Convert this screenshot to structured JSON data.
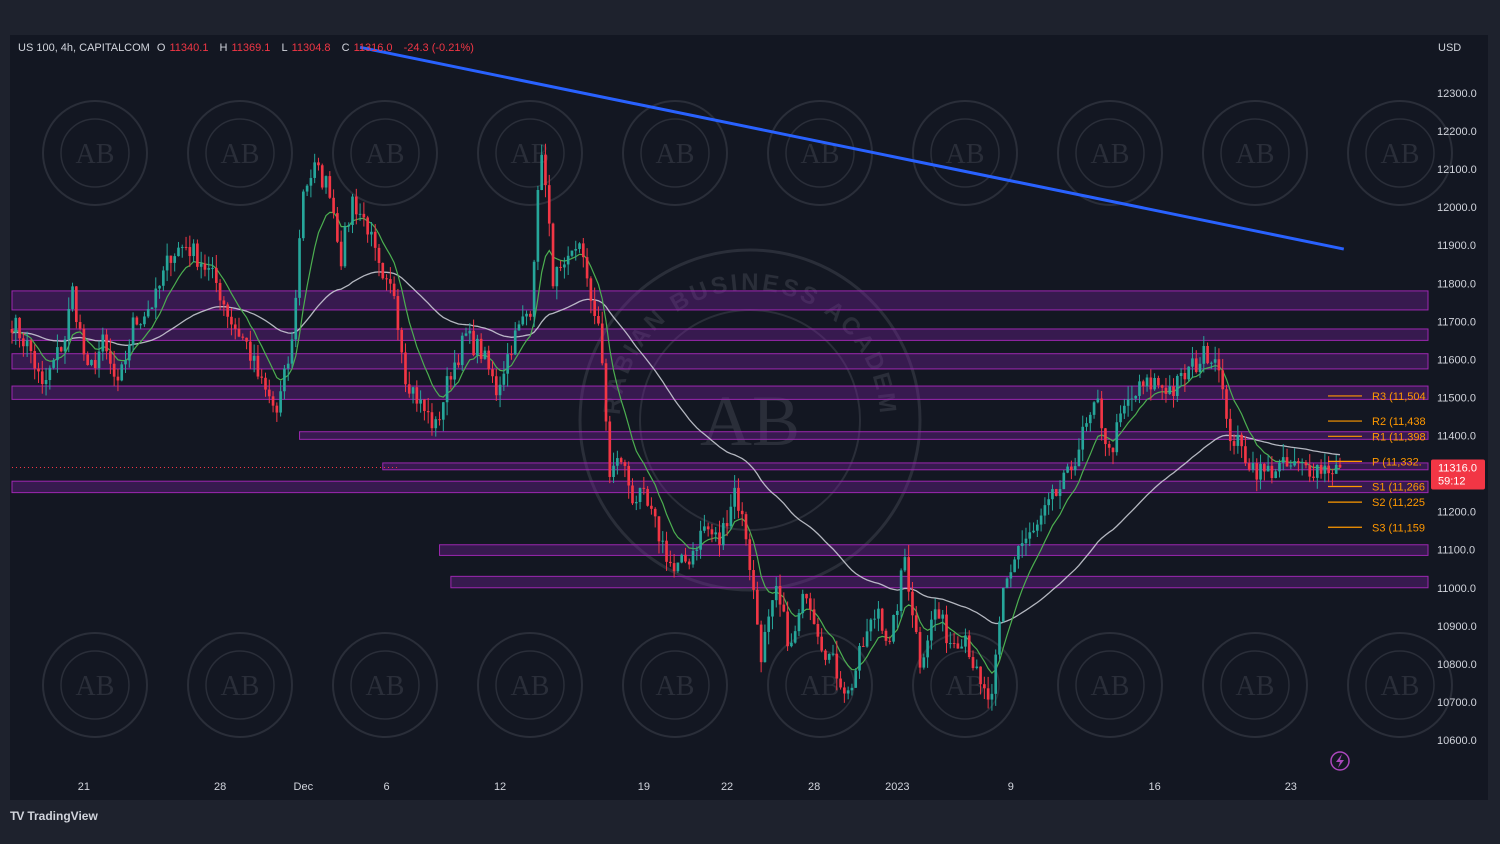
{
  "header": {
    "symbol": "US 100, 4h, CAPITALCOM",
    "open_label": "O",
    "open": "11340.1",
    "high_label": "H",
    "high": "11369.1",
    "low_label": "L",
    "low": "11304.8",
    "close_label": "C",
    "close": "11316.0",
    "change": "-24.3 (-0.21%)"
  },
  "currency": "USD",
  "footer": {
    "logo": "TV",
    "brand": "TradingView"
  },
  "price_tag": {
    "price": "11316.0",
    "countdown": "59:12"
  },
  "colors": {
    "background": "#131722",
    "frame": "#1e222d",
    "up": "#26a69a",
    "down": "#f23645",
    "trendline": "#2962ff",
    "zone_fill": "#7b1fa2",
    "zone_border": "#9c27b0",
    "ema_fast": "#4caf50",
    "ema_slow": "#d1d4dc",
    "pivot": "#ff9800"
  },
  "watermark": {
    "text": "ARABIAN BUSINESS ACADEMY",
    "monogram": "AB"
  },
  "icons": {
    "lightning": "lightning-icon"
  },
  "chart_data": {
    "type": "candlestick",
    "title": "US 100, 4h, CAPITALCOM",
    "ylabel": "USD",
    "ylim": [
      10560,
      12420
    ],
    "y_ticks": [
      10600,
      10700,
      10800,
      10900,
      11000,
      11100,
      11200,
      11300,
      11400,
      11500,
      11600,
      11700,
      11800,
      11900,
      12000,
      12100,
      12200,
      12300
    ],
    "y_tick_labels": [
      "10600.0",
      "10700.0",
      "10800.0",
      "10900.0",
      "11000.0",
      "11100.0",
      "11200.0",
      "11300.0",
      "11400.0",
      "11500.0",
      "11600.0",
      "11700.0",
      "11800.0",
      "11900.0",
      "12000.0",
      "12100.0",
      "12200.0",
      "12300.0"
    ],
    "x_ticks": [
      {
        "label": "21",
        "bar": 19
      },
      {
        "label": "28",
        "bar": 55
      },
      {
        "label": "Dec",
        "bar": 77
      },
      {
        "label": "6",
        "bar": 99
      },
      {
        "label": "12",
        "bar": 129
      },
      {
        "label": "19",
        "bar": 167
      },
      {
        "label": "22",
        "bar": 189
      },
      {
        "label": "28",
        "bar": 212
      },
      {
        "label": "2023",
        "bar": 234
      },
      {
        "label": "9",
        "bar": 264
      },
      {
        "label": "16",
        "bar": 302
      },
      {
        "label": "23",
        "bar": 338
      }
    ],
    "bar_count": 352,
    "anchors": [
      [
        0,
        11700
      ],
      [
        5,
        11620
      ],
      [
        8,
        11520
      ],
      [
        14,
        11660
      ],
      [
        16,
        11780
      ],
      [
        20,
        11560
      ],
      [
        24,
        11640
      ],
      [
        28,
        11520
      ],
      [
        32,
        11690
      ],
      [
        38,
        11760
      ],
      [
        42,
        11880
      ],
      [
        46,
        11900
      ],
      [
        50,
        11860
      ],
      [
        54,
        11800
      ],
      [
        58,
        11700
      ],
      [
        62,
        11640
      ],
      [
        66,
        11530
      ],
      [
        70,
        11460
      ],
      [
        74,
        11640
      ],
      [
        77,
        12050
      ],
      [
        80,
        12100
      ],
      [
        84,
        12050
      ],
      [
        87,
        11870
      ],
      [
        90,
        12020
      ],
      [
        94,
        11950
      ],
      [
        98,
        11790
      ],
      [
        101,
        11780
      ],
      [
        104,
        11560
      ],
      [
        108,
        11480
      ],
      [
        112,
        11420
      ],
      [
        116,
        11570
      ],
      [
        120,
        11660
      ],
      [
        124,
        11620
      ],
      [
        128,
        11520
      ],
      [
        132,
        11640
      ],
      [
        137,
        11740
      ],
      [
        140,
        12160
      ],
      [
        143,
        11820
      ],
      [
        146,
        11820
      ],
      [
        150,
        11920
      ],
      [
        152,
        11790
      ],
      [
        155,
        11700
      ],
      [
        158,
        11300
      ],
      [
        161,
        11340
      ],
      [
        164,
        11240
      ],
      [
        167,
        11230
      ],
      [
        171,
        11140
      ],
      [
        175,
        11040
      ],
      [
        179,
        11080
      ],
      [
        183,
        11160
      ],
      [
        187,
        11120
      ],
      [
        191,
        11260
      ],
      [
        194,
        11140
      ],
      [
        198,
        10830
      ],
      [
        202,
        10980
      ],
      [
        206,
        10840
      ],
      [
        210,
        11000
      ],
      [
        214,
        10860
      ],
      [
        217,
        10800
      ],
      [
        221,
        10720
      ],
      [
        225,
        10850
      ],
      [
        229,
        10950
      ],
      [
        232,
        10840
      ],
      [
        236,
        11080
      ],
      [
        240,
        10810
      ],
      [
        244,
        10940
      ],
      [
        248,
        10860
      ],
      [
        252,
        10880
      ],
      [
        256,
        10730
      ],
      [
        259,
        10700
      ],
      [
        262,
        10990
      ],
      [
        266,
        11110
      ],
      [
        270,
        11140
      ],
      [
        275,
        11230
      ],
      [
        279,
        11290
      ],
      [
        283,
        11400
      ],
      [
        287,
        11480
      ],
      [
        290,
        11350
      ],
      [
        294,
        11470
      ],
      [
        298,
        11520
      ],
      [
        302,
        11540
      ],
      [
        307,
        11520
      ],
      [
        311,
        11570
      ],
      [
        316,
        11620
      ],
      [
        319,
        11600
      ],
      [
        321,
        11420
      ],
      [
        325,
        11360
      ],
      [
        328,
        11320
      ],
      [
        331,
        11300
      ],
      [
        334,
        11316
      ]
    ],
    "trendline": {
      "from": {
        "bar": 92,
        "price": 12420
      },
      "to": {
        "bar": 352,
        "price": 11890
      }
    },
    "support_resistance_zones": [
      {
        "from": 11730,
        "to": 11780,
        "start_bar": 0
      },
      {
        "from": 11650,
        "to": 11680,
        "start_bar": 0
      },
      {
        "from": 11575,
        "to": 11615,
        "start_bar": 0
      },
      {
        "from": 11495,
        "to": 11530,
        "start_bar": 0
      },
      {
        "from": 11390,
        "to": 11410,
        "start_bar": 76
      },
      {
        "from": 11310,
        "to": 11328,
        "start_bar": 98
      },
      {
        "from": 11250,
        "to": 11280,
        "start_bar": 0
      },
      {
        "from": 11085,
        "to": 11113,
        "start_bar": 113
      },
      {
        "from": 11000,
        "to": 11030,
        "start_bar": 116
      }
    ],
    "pivot_levels": [
      {
        "label": "R3 (11,504",
        "value": 11504
      },
      {
        "label": "R2 (11,438",
        "value": 11438
      },
      {
        "label": "R1 (11,398",
        "value": 11398
      },
      {
        "label": "P (11,332.",
        "value": 11332
      },
      {
        "label": "S1 (11,266",
        "value": 11266
      },
      {
        "label": "S2 (11,225",
        "value": 11225
      },
      {
        "label": "S3 (11,159",
        "value": 11159
      }
    ],
    "ema_fast_label": "",
    "ema_slow_label": "",
    "grid": false,
    "legend": "none"
  }
}
